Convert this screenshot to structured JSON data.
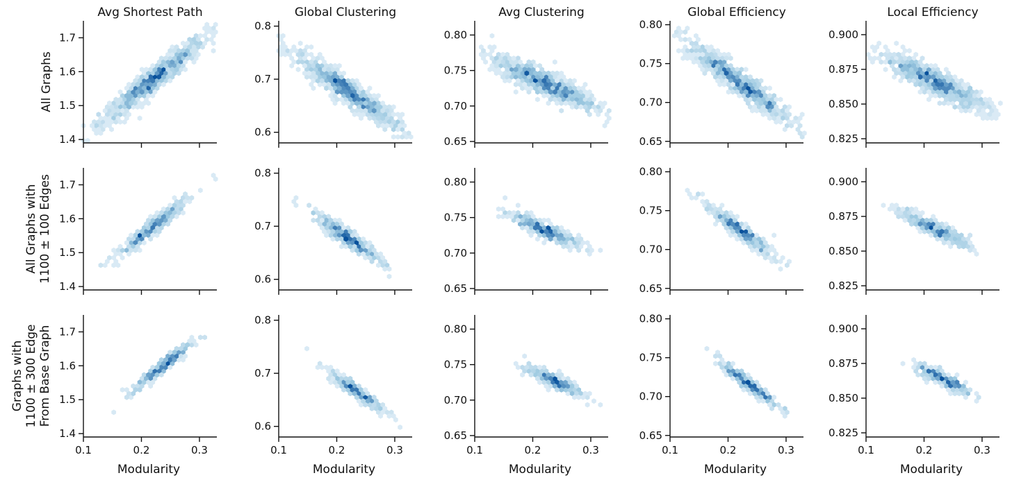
{
  "chart_data": {
    "type": "heatmap",
    "subtype": "hexbin-grid",
    "colormap": "Blues",
    "colors": {
      "light": "#eef5fc",
      "mid": "#9ecae1",
      "dark": "#08519c"
    },
    "grid": false,
    "col_titles": [
      "Avg Shortest Path",
      "Global Clustering",
      "Avg Clustering",
      "Global Efficiency",
      "Local Efficiency"
    ],
    "row_labels": [
      [
        "All Graphs"
      ],
      [
        "All Graphs with",
        "1100 ± 100 Edges"
      ],
      [
        "Graphs with",
        "1100 ± 300 Edge",
        "From Base Graph"
      ]
    ],
    "xlabel": "Modularity",
    "xlim": [
      0.1,
      0.33
    ],
    "xticks": [
      0.1,
      0.2,
      0.3
    ],
    "xtick_labels": [
      "0.1",
      "0.2",
      "0.3"
    ],
    "metrics": [
      {
        "name": "Avg Shortest Path",
        "ylim": [
          1.39,
          1.75
        ],
        "yticks": [
          1.4,
          1.5,
          1.6,
          1.7
        ],
        "ytick_labels": [
          "1.4",
          "1.5",
          "1.6",
          "1.7"
        ],
        "slope": 1.35,
        "y_at_0_22": 1.575
      },
      {
        "name": "Global Clustering",
        "ylim": [
          0.58,
          0.81
        ],
        "yticks": [
          0.6,
          0.7,
          0.8
        ],
        "ytick_labels": [
          "0.6",
          "0.7",
          "0.8"
        ],
        "slope": -0.75,
        "y_at_0_22": 0.677
      },
      {
        "name": "Avg Clustering",
        "ylim": [
          0.648,
          0.82
        ],
        "yticks": [
          0.65,
          0.7,
          0.75,
          0.8
        ],
        "ytick_labels": [
          "0.65",
          "0.70",
          "0.75",
          "0.80"
        ],
        "slope": -0.35,
        "y_at_0_22": 0.733
      },
      {
        "name": "Global Efficiency",
        "ylim": [
          0.648,
          0.805
        ],
        "yticks": [
          0.65,
          0.7,
          0.75,
          0.8
        ],
        "ytick_labels": [
          "0.65",
          "0.70",
          "0.75",
          "0.80"
        ],
        "slope": -0.55,
        "y_at_0_22": 0.725
      },
      {
        "name": "Local Efficiency",
        "ylim": [
          0.822,
          0.91
        ],
        "yticks": [
          0.825,
          0.85,
          0.875,
          0.9
        ],
        "ytick_labels": [
          "0.825",
          "0.850",
          "0.875",
          "0.900"
        ],
        "slope": -0.2,
        "y_at_0_22": 0.866
      }
    ],
    "rows": [
      {
        "x_center": 0.22,
        "x_spread": 0.045,
        "y_scatter": 0.55,
        "density_points": 900
      },
      {
        "x_center": 0.22,
        "x_spread": 0.03,
        "y_scatter": 0.35,
        "density_points": 420
      },
      {
        "x_center": 0.235,
        "x_spread": 0.025,
        "y_scatter": 0.3,
        "density_points": 320
      }
    ]
  }
}
